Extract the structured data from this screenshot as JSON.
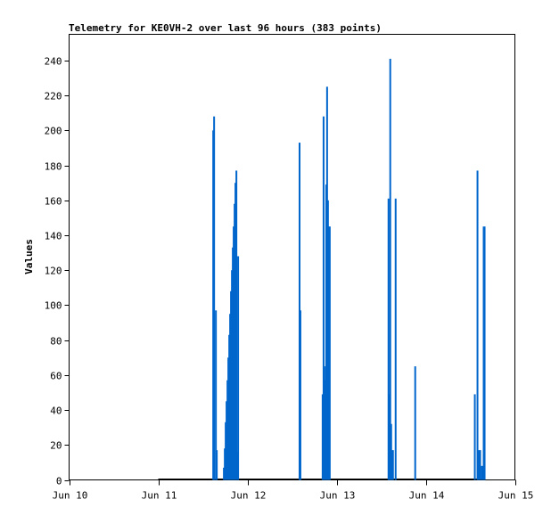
{
  "chart_data": {
    "type": "bar",
    "title": "Telemetry for KE0VH-2 over last 96 hours (383 points)",
    "xlabel": "",
    "ylabel": "Values",
    "xlim": [
      "Jun 10 00:00",
      "Jun 15 00:00"
    ],
    "ylim": [
      0,
      255
    ],
    "x_ticks": [
      "Jun 10",
      "Jun 11",
      "Jun 12",
      "Jun 13",
      "Jun 14",
      "Jun 15"
    ],
    "y_ticks": [
      0,
      20,
      40,
      60,
      80,
      100,
      120,
      140,
      160,
      180,
      200,
      220,
      240
    ],
    "grid": false,
    "series_color": "#0066cc",
    "baseline_range": [
      "Jun 11 00:00",
      "Jun 14 16:00"
    ],
    "points": [
      [
        "Jun 11 14:48",
        200
      ],
      [
        "Jun 11 15:02",
        208
      ],
      [
        "Jun 11 15:31",
        97
      ],
      [
        "Jun 11 15:45",
        17
      ],
      [
        "Jun 11 17:40",
        7
      ],
      [
        "Jun 11 17:55",
        18
      ],
      [
        "Jun 11 18:09",
        33
      ],
      [
        "Jun 11 18:23",
        45
      ],
      [
        "Jun 11 18:38",
        57
      ],
      [
        "Jun 11 18:52",
        70
      ],
      [
        "Jun 11 19:07",
        83
      ],
      [
        "Jun 11 19:21",
        95
      ],
      [
        "Jun 11 19:35",
        108
      ],
      [
        "Jun 11 19:50",
        120
      ],
      [
        "Jun 11 20:04",
        133
      ],
      [
        "Jun 11 20:18",
        145
      ],
      [
        "Jun 11 20:33",
        158
      ],
      [
        "Jun 11 20:47",
        170
      ],
      [
        "Jun 11 21:02",
        177
      ],
      [
        "Jun 11 21:16",
        16
      ],
      [
        "Jun 11 21:30",
        128
      ],
      [
        "Jun 12 14:02",
        193
      ],
      [
        "Jun 12 14:16",
        97
      ],
      [
        "Jun 12 20:15",
        49
      ],
      [
        "Jun 12 20:30",
        208
      ],
      [
        "Jun 12 20:44",
        65
      ],
      [
        "Jun 12 20:59",
        57
      ],
      [
        "Jun 12 21:13",
        169
      ],
      [
        "Jun 12 21:27",
        225
      ],
      [
        "Jun 12 21:41",
        160
      ],
      [
        "Jun 12 21:56",
        145
      ],
      [
        "Jun 12 22:10",
        145
      ],
      [
        "Jun 13 13:59",
        161
      ],
      [
        "Jun 13 14:13",
        49
      ],
      [
        "Jun 13 14:27",
        241
      ],
      [
        "Jun 13 14:42",
        32
      ],
      [
        "Jun 13 14:56",
        17
      ],
      [
        "Jun 13 15:11",
        17
      ],
      [
        "Jun 13 15:54",
        161
      ],
      [
        "Jun 13 21:10",
        65
      ],
      [
        "Jun 14 13:13",
        49
      ],
      [
        "Jun 14 13:56",
        177
      ],
      [
        "Jun 14 14:10",
        16
      ],
      [
        "Jun 14 14:24",
        17
      ],
      [
        "Jun 14 14:39",
        17
      ],
      [
        "Jun 14 15:08",
        8
      ],
      [
        "Jun 14 15:36",
        145
      ],
      [
        "Jun 14 15:51",
        145
      ]
    ]
  }
}
